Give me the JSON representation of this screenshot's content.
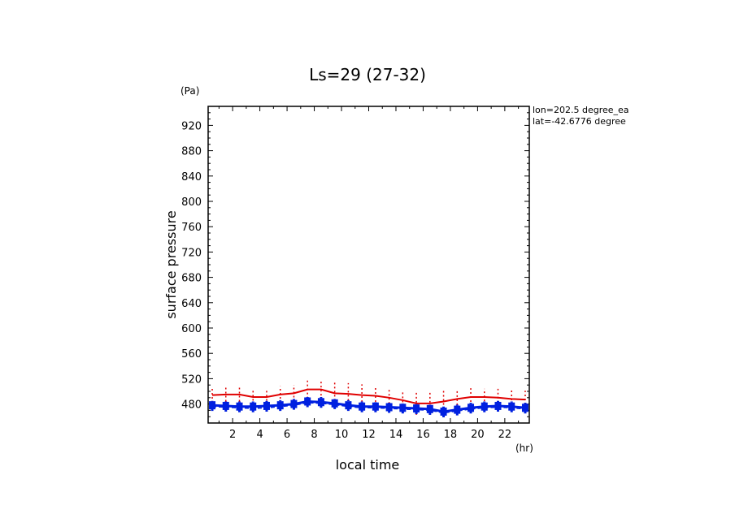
{
  "chart_data": {
    "type": "line",
    "title": "Ls=29 (27-32)",
    "xlabel": "local time",
    "ylabel": "surface pressure",
    "x_unit": "(hr)",
    "y_unit": "(Pa)",
    "xlim": [
      0.2,
      23.8
    ],
    "ylim": [
      450,
      950
    ],
    "x_ticks": [
      2,
      4,
      6,
      8,
      10,
      12,
      14,
      16,
      18,
      20,
      22
    ],
    "y_ticks": [
      480,
      520,
      560,
      600,
      640,
      680,
      720,
      760,
      800,
      840,
      880,
      920
    ],
    "x_tick_labels": [
      "2",
      "4",
      "6",
      "8",
      "10",
      "12",
      "14",
      "16",
      "18",
      "20",
      "22"
    ],
    "y_tick_labels": [
      "480",
      "520",
      "560",
      "600",
      "640",
      "680",
      "720",
      "760",
      "800",
      "840",
      "880",
      "920"
    ],
    "annotations": [
      "lon=202.5 degree_ea",
      "lat=-42.6776 degree"
    ],
    "grid": false,
    "series": [
      {
        "color": "#e00000",
        "style": "solid line with vertical spread bars",
        "x": [
          0.5,
          1.5,
          2.5,
          3.5,
          4.5,
          5.5,
          6.5,
          7.5,
          8.5,
          9.5,
          10.5,
          11.5,
          12.5,
          13.5,
          14.5,
          15.5,
          16.5,
          17.5,
          18.5,
          19.5,
          20.5,
          21.5,
          22.5,
          23.5
        ],
        "values": [
          494,
          495,
          495,
          491,
          491,
          495,
          497,
          503,
          503,
          497,
          496,
          494,
          493,
          490,
          486,
          481,
          481,
          484,
          488,
          491,
          491,
          490,
          488,
          487
        ],
        "spread_high": [
          506,
          506,
          506,
          503,
          503,
          508,
          510,
          517,
          519,
          515,
          513,
          511,
          509,
          506,
          502,
          499,
          499,
          502,
          504,
          505,
          504,
          504,
          503,
          501
        ],
        "spread_low": [
          482,
          484,
          484,
          479,
          479,
          482,
          484,
          489,
          487,
          479,
          479,
          477,
          477,
          474,
          470,
          463,
          463,
          466,
          472,
          477,
          478,
          476,
          473,
          473
        ]
      },
      {
        "color": "#0020e0",
        "style": "thick solid line with dashed companion and vertical spread bars",
        "x": [
          0.5,
          1.5,
          2.5,
          3.5,
          4.5,
          5.5,
          6.5,
          7.5,
          8.5,
          9.5,
          10.5,
          11.5,
          12.5,
          13.5,
          14.5,
          15.5,
          16.5,
          17.5,
          18.5,
          19.5,
          20.5,
          21.5,
          22.5,
          23.5
        ],
        "values": [
          478,
          477,
          476,
          476,
          477,
          478,
          480,
          484,
          483,
          481,
          478,
          476,
          476,
          475,
          474,
          473,
          472,
          468,
          471,
          474,
          476,
          477,
          476,
          474
        ],
        "dashed_values": [
          476,
          475,
          474,
          473,
          474,
          476,
          478,
          482,
          481,
          479,
          476,
          474,
          474,
          473,
          472,
          471,
          470,
          466,
          469,
          472,
          474,
          475,
          474,
          472
        ],
        "spread_high": [
          485,
          484,
          484,
          484,
          485,
          486,
          488,
          491,
          491,
          488,
          486,
          484,
          483,
          482,
          481,
          480,
          479,
          476,
          479,
          482,
          484,
          485,
          484,
          482
        ],
        "spread_low": [
          469,
          468,
          467,
          467,
          468,
          469,
          471,
          475,
          474,
          472,
          469,
          467,
          467,
          466,
          465,
          464,
          463,
          459,
          462,
          465,
          467,
          468,
          467,
          465
        ]
      }
    ]
  }
}
